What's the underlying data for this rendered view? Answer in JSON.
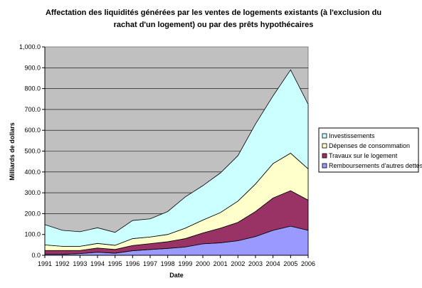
{
  "chart_data": {
    "type": "area",
    "stacked": true,
    "title": "Affectation des liquidités générées par les ventes de logements existants (à l'exclusion du rachat d'un logement) ou par des prêts hypothécaires",
    "xlabel": "Date",
    "ylabel": "Milliards de dollars",
    "x": [
      "1991",
      "1992",
      "1993",
      "1994",
      "1995",
      "1996",
      "1997",
      "1998",
      "1999",
      "2000",
      "2001",
      "2002",
      "2003",
      "2004",
      "2005",
      "2006"
    ],
    "ylim": [
      0,
      1000
    ],
    "yticks": [
      "0.0",
      "100.0",
      "200.0",
      "300.0",
      "400.0",
      "500.0",
      "600.0",
      "700.0",
      "800.0",
      "900.0",
      "1,000.0"
    ],
    "grid": true,
    "legend_position": "right",
    "plot_background": "#c0c0c0",
    "series": [
      {
        "name": "Remboursements d'autres dettes",
        "color": "#9999ff",
        "values": [
          5,
          5,
          8,
          15,
          10,
          22,
          28,
          33,
          40,
          55,
          60,
          70,
          90,
          120,
          140,
          120
        ]
      },
      {
        "name": "Travaux sur le logement",
        "color": "#993366",
        "values": [
          18,
          18,
          15,
          20,
          18,
          25,
          28,
          32,
          40,
          52,
          70,
          88,
          120,
          155,
          170,
          145
        ]
      },
      {
        "name": "Dépenses de consommation",
        "color": "#ffffcc",
        "values": [
          27,
          20,
          20,
          22,
          20,
          33,
          32,
          35,
          50,
          62,
          75,
          102,
          132,
          165,
          180,
          150
        ]
      },
      {
        "name": "Investissements",
        "color": "#ccffff",
        "values": [
          97,
          77,
          70,
          75,
          62,
          87,
          87,
          110,
          150,
          165,
          190,
          218,
          288,
          325,
          400,
          310
        ]
      }
    ]
  }
}
